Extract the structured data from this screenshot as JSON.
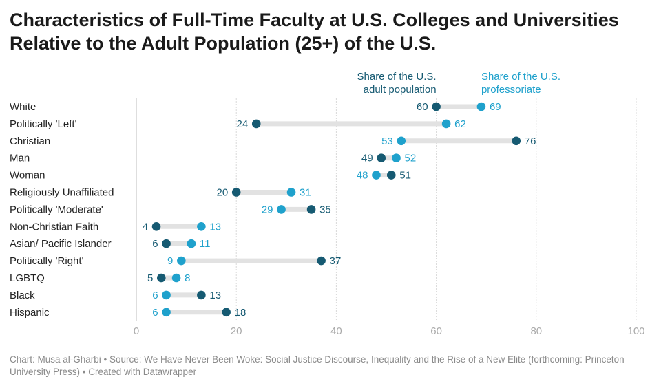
{
  "title": "Characteristics of Full-Time Faculty at U.S. Colleges and Universities Relative to the Adult Population (25+) of the U.S.",
  "footer": "Chart: Musa al-Gharbi • Source: We Have Never Been Woke: Social Justice Discourse, Inequality and the Rise of a New Elite (forthcoming: Princeton University Press) • Created with Datawrapper",
  "colors": {
    "population": "#165a72",
    "professoriate": "#1fa1cc",
    "connector": "#e2e2e2",
    "grid": "#d9d9d9"
  },
  "chart_data": {
    "type": "dot-range",
    "xlim": [
      0,
      100
    ],
    "xticks": [
      0,
      20,
      40,
      60,
      80,
      100
    ],
    "grid": true,
    "legend_placement": "top, above chart",
    "series": [
      {
        "key": "population",
        "name_lines": [
          "Share of the U.S.",
          "adult population"
        ]
      },
      {
        "key": "professoriate",
        "name_lines": [
          "Share of the U.S.",
          "professoriate"
        ]
      }
    ],
    "categories": [
      "White",
      "Politically 'Left'",
      "Christian",
      "Man",
      "Woman",
      "Religiously Unaffiliated",
      "Politically 'Moderate'",
      "Non-Christian Faith",
      "Asian/ Pacific Islander",
      "Politically 'Right'",
      "LGBTQ",
      "Black",
      "Hispanic"
    ],
    "population": [
      60,
      24,
      76,
      49,
      51,
      20,
      35,
      4,
      6,
      37,
      5,
      13,
      18
    ],
    "professoriate": [
      69,
      62,
      53,
      52,
      48,
      31,
      29,
      13,
      11,
      9,
      8,
      6,
      6
    ]
  }
}
